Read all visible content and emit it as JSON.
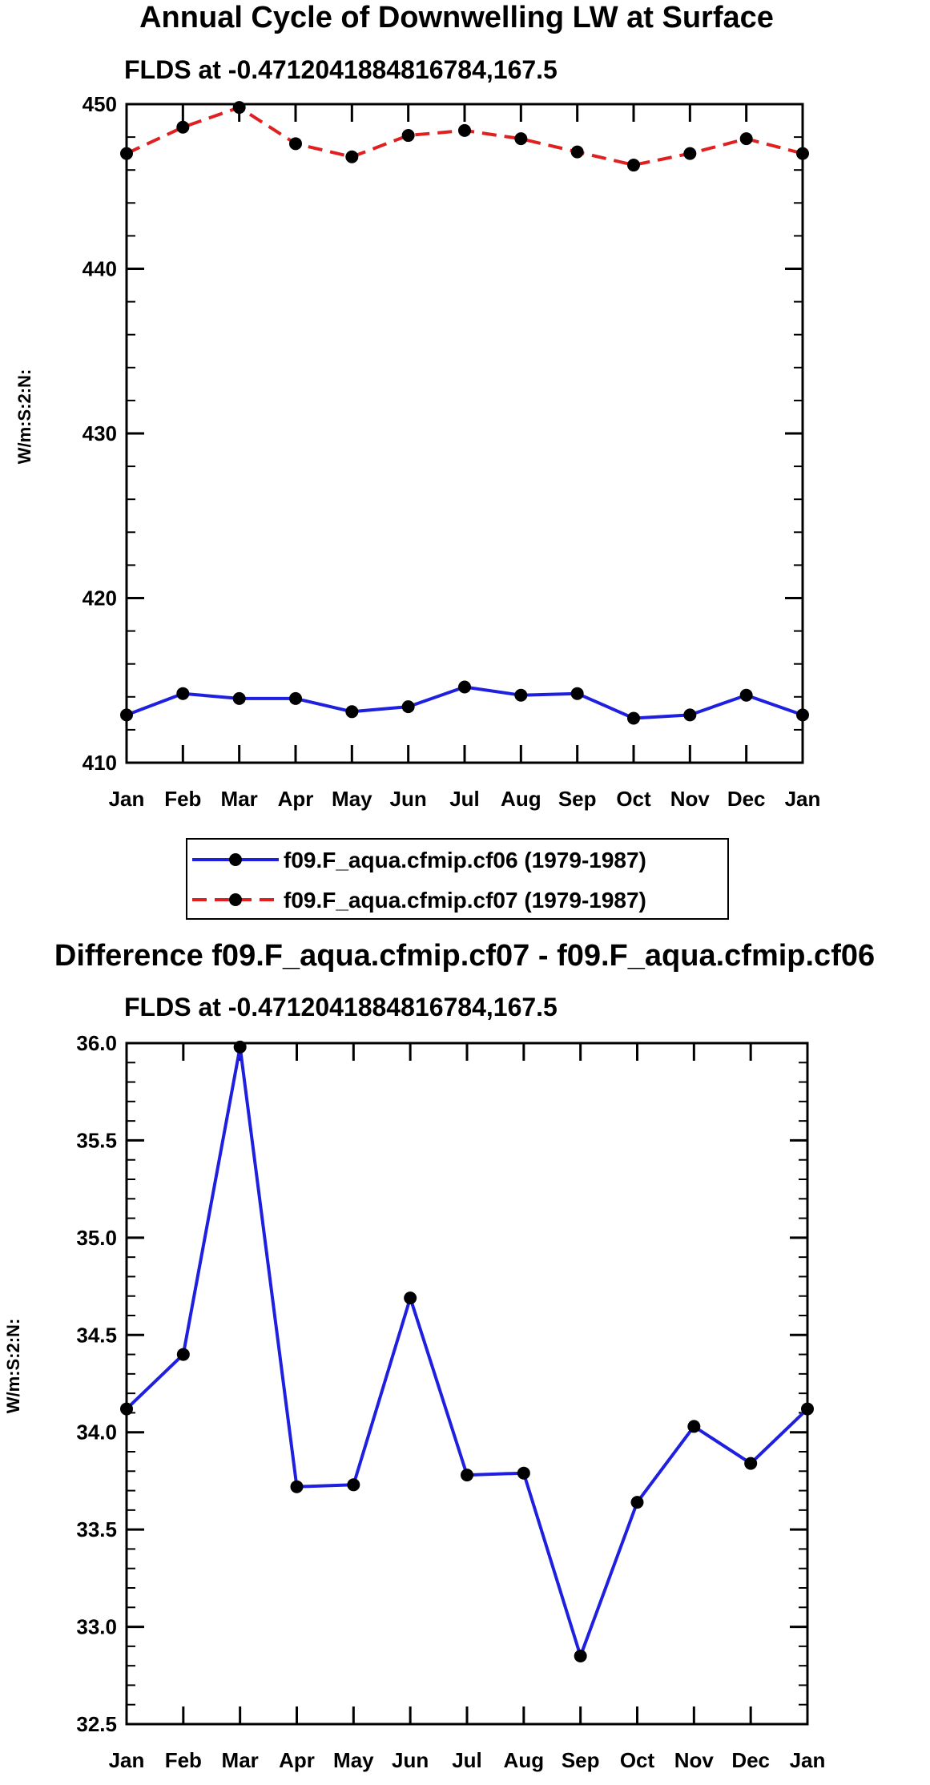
{
  "chart_data": [
    {
      "type": "line",
      "title": "Annual Cycle of Downwelling LW at Surface",
      "subtitle": "FLDS at -0.4712041884816784,167.5",
      "ylabel": "W/m:S:2:N:",
      "xlabel": "",
      "categories": [
        "Jan",
        "Feb",
        "Mar",
        "Apr",
        "May",
        "Jun",
        "Jul",
        "Aug",
        "Sep",
        "Oct",
        "Nov",
        "Dec",
        "Jan"
      ],
      "ylim": [
        410,
        450
      ],
      "yticks": [
        "410",
        "420",
        "430",
        "440",
        "450"
      ],
      "grid": false,
      "legend_position": "bottom",
      "series": [
        {
          "name": "f09.F_aqua.cfmip.cf06 (1979-1987)",
          "color": "#1f1fe0",
          "dash": "solid",
          "values": [
            412.9,
            414.2,
            413.9,
            413.9,
            413.1,
            413.4,
            414.6,
            414.1,
            414.2,
            412.7,
            412.9,
            414.1,
            412.9
          ]
        },
        {
          "name": "f09.F_aqua.cfmip.cf07 (1979-1987)",
          "color": "#e02020",
          "dash": "dashed",
          "values": [
            447.0,
            448.6,
            449.8,
            447.6,
            446.8,
            448.1,
            448.4,
            447.9,
            447.1,
            446.3,
            447.0,
            447.9,
            447.0
          ]
        }
      ]
    },
    {
      "type": "line",
      "title": "Difference f09.F_aqua.cfmip.cf07 - f09.F_aqua.cfmip.cf06",
      "subtitle": "FLDS at -0.4712041884816784,167.5",
      "ylabel": "W/m:S:2:N:",
      "xlabel": "",
      "categories": [
        "Jan",
        "Feb",
        "Mar",
        "Apr",
        "May",
        "Jun",
        "Jul",
        "Aug",
        "Sep",
        "Oct",
        "Nov",
        "Dec",
        "Jan"
      ],
      "ylim": [
        32.5,
        36.0
      ],
      "yticks": [
        "32.5",
        "33.0",
        "33.5",
        "34.0",
        "34.5",
        "35.0",
        "35.5",
        "36.0"
      ],
      "grid": false,
      "series": [
        {
          "name": "",
          "color": "#1f1fe0",
          "dash": "solid",
          "values": [
            34.12,
            34.4,
            35.98,
            33.72,
            33.73,
            34.69,
            33.78,
            33.79,
            32.85,
            33.64,
            34.03,
            33.84,
            34.12
          ]
        }
      ]
    }
  ]
}
